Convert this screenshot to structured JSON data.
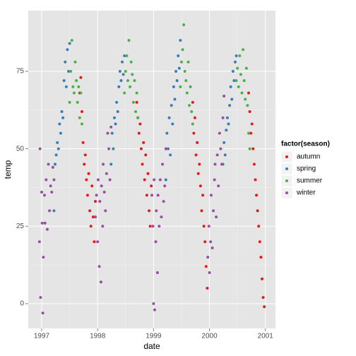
{
  "chart_data": {
    "type": "scatter",
    "x_label": "date",
    "y_label": "temp",
    "legend_title": "factor(season)",
    "legend_position": "right",
    "grid": true,
    "xlim": [
      1996.76,
      2001.18
    ],
    "xticks": [
      1997,
      1998,
      1999,
      2000,
      2001
    ],
    "ylim": [
      -8,
      94.6
    ],
    "yticks": [
      0,
      25,
      50,
      75
    ],
    "series": [
      {
        "name": "autumn",
        "color": "#E41A1C",
        "x": [
          1997.68,
          1997.7,
          1997.72,
          1997.74,
          1997.76,
          1997.78,
          1997.8,
          1997.82,
          1997.84,
          1997.86,
          1997.88,
          1997.9,
          1997.92,
          1997.94,
          1997.96,
          1998.7,
          1998.72,
          1998.74,
          1998.76,
          1998.78,
          1998.8,
          1998.82,
          1998.84,
          1998.86,
          1998.88,
          1998.9,
          1998.92,
          1998.94,
          1998.96,
          1999.7,
          1999.72,
          1999.74,
          1999.76,
          1999.78,
          1999.8,
          1999.82,
          1999.84,
          1999.86,
          1999.88,
          1999.9,
          1999.92,
          1999.94,
          1999.96,
          2000.7,
          2000.72,
          2000.74,
          2000.76,
          2000.78,
          2000.8,
          2000.82,
          2000.84,
          2000.86,
          2000.88,
          2000.9,
          2000.92,
          2000.94,
          2000.96,
          2000.98
        ],
        "values": [
          68,
          73,
          62,
          52,
          45,
          48,
          40,
          35,
          42,
          30,
          25,
          38,
          28,
          20,
          33,
          65,
          60,
          55,
          58,
          50,
          45,
          52,
          40,
          48,
          35,
          42,
          30,
          25,
          38,
          65,
          55,
          60,
          48,
          52,
          42,
          45,
          38,
          30,
          35,
          25,
          20,
          12,
          5,
          68,
          62,
          55,
          58,
          50,
          45,
          40,
          35,
          30,
          25,
          20,
          15,
          8,
          2,
          -1
        ]
      },
      {
        "name": "spring",
        "color": "#377EB8",
        "x": [
          1997.22,
          1997.24,
          1997.26,
          1997.28,
          1997.3,
          1997.32,
          1997.34,
          1997.36,
          1997.38,
          1997.4,
          1997.42,
          1997.44,
          1997.46,
          1997.48,
          1997.5,
          1998.24,
          1998.26,
          1998.28,
          1998.3,
          1998.32,
          1998.34,
          1998.36,
          1998.38,
          1998.4,
          1998.42,
          1998.44,
          1998.46,
          1998.48,
          1999.22,
          1999.24,
          1999.26,
          1999.28,
          1999.3,
          1999.32,
          1999.34,
          1999.36,
          1999.38,
          1999.4,
          1999.42,
          1999.44,
          1999.46,
          1999.48,
          2000.24,
          2000.26,
          2000.28,
          2000.3,
          2000.32,
          2000.34,
          2000.36,
          2000.38,
          2000.4,
          2000.42,
          2000.44,
          2000.46,
          2000.48
        ],
        "values": [
          30,
          45,
          48,
          52,
          50,
          58,
          55,
          62,
          60,
          72,
          78,
          70,
          82,
          75,
          84,
          45,
          55,
          50,
          60,
          58,
          65,
          62,
          70,
          75,
          72,
          78,
          74,
          80,
          40,
          55,
          50,
          60,
          48,
          64,
          58,
          70,
          66,
          75,
          72,
          80,
          76,
          85,
          45,
          52,
          48,
          56,
          60,
          58,
          64,
          70,
          66,
          75,
          72,
          78,
          80
        ]
      },
      {
        "name": "summer",
        "color": "#4DAF4A",
        "x": [
          1997.5,
          1997.52,
          1997.54,
          1997.56,
          1997.58,
          1997.6,
          1997.62,
          1997.64,
          1997.66,
          1997.68,
          1997.7,
          1997.72,
          1998.48,
          1998.5,
          1998.52,
          1998.54,
          1998.56,
          1998.58,
          1998.6,
          1998.62,
          1998.64,
          1998.66,
          1998.68,
          1998.7,
          1998.72,
          1999.48,
          1999.5,
          1999.52,
          1999.54,
          1999.56,
          1999.58,
          1999.6,
          1999.62,
          1999.64,
          1999.66,
          1999.68,
          1999.7,
          2000.48,
          2000.5,
          2000.52,
          2000.54,
          2000.56,
          2000.58,
          2000.6,
          2000.62,
          2000.64,
          2000.66,
          2000.68,
          2000.7,
          2000.72
        ],
        "values": [
          65,
          75,
          85,
          70,
          68,
          78,
          72,
          65,
          70,
          60,
          68,
          58,
          68,
          75,
          80,
          72,
          85,
          70,
          78,
          74,
          65,
          72,
          62,
          68,
          60,
          70,
          78,
          82,
          90,
          75,
          72,
          68,
          78,
          64,
          70,
          62,
          58,
          72,
          76,
          70,
          80,
          74,
          68,
          82,
          72,
          66,
          76,
          64,
          55,
          50
        ]
      },
      {
        "name": "winter",
        "color": "#984EA3",
        "x": [
          1996.96,
          1996.97,
          1996.98,
          1997.0,
          1997.01,
          1997.02,
          1997.03,
          1997.05,
          1997.06,
          1997.08,
          1997.1,
          1997.12,
          1997.14,
          1997.16,
          1997.18,
          1997.2,
          1997.22,
          1997.96,
          1997.98,
          1998.0,
          1998.01,
          1998.03,
          1998.04,
          1998.06,
          1998.07,
          1998.09,
          1998.1,
          1998.12,
          1998.14,
          1998.16,
          1998.18,
          1998.2,
          1998.22,
          1998.24,
          1998.97,
          1998.99,
          1999.0,
          1999.01,
          1999.02,
          1999.04,
          1999.05,
          1999.07,
          1999.08,
          1999.1,
          1999.12,
          1999.14,
          1999.16,
          1999.18,
          1999.2,
          1999.22,
          1999.97,
          1999.99,
          2000.0,
          2000.02,
          2000.03,
          2000.05,
          2000.07,
          2000.09,
          2000.1,
          2000.12,
          2000.14,
          2000.16,
          2000.18,
          2000.2,
          2000.22,
          2000.24,
          2000.26
        ],
        "values": [
          20,
          50,
          2,
          36,
          26,
          -3,
          15,
          35,
          26,
          40,
          24,
          45,
          30,
          38,
          36,
          44,
          40,
          28,
          35,
          20,
          40,
          12,
          33,
          7,
          38,
          25,
          45,
          36,
          30,
          42,
          55,
          50,
          40,
          57,
          35,
          25,
          0,
          40,
          -2,
          20,
          30,
          10,
          35,
          25,
          40,
          28,
          45,
          33,
          38,
          50,
          15,
          25,
          10,
          20,
          35,
          18,
          30,
          40,
          45,
          28,
          48,
          38,
          55,
          50,
          45,
          60,
          67
        ]
      }
    ]
  }
}
